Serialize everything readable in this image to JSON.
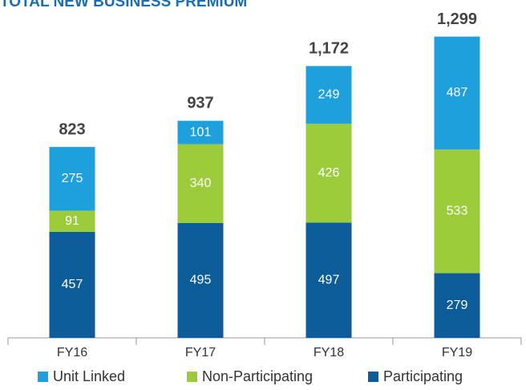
{
  "chart_data": {
    "type": "stacked_bar",
    "title": "TOTAL NEW BUSINESS PREMIUM",
    "categories": [
      "FY16",
      "FY17",
      "FY18",
      "FY19"
    ],
    "series": [
      {
        "name": "Unit Linked",
        "color": "#1ea0dc",
        "values": [
          275,
          101,
          249,
          487
        ]
      },
      {
        "name": "Non-Participating",
        "color": "#9ccb3b",
        "values": [
          91,
          340,
          426,
          533
        ]
      },
      {
        "name": "Participating",
        "color": "#0d5c9a",
        "values": [
          457,
          495,
          497,
          279
        ]
      }
    ],
    "totals": {
      "values": [
        823,
        937,
        1172,
        1299
      ],
      "value_labels": [
        "823",
        "937",
        "1,172",
        "1,299"
      ]
    },
    "legend": "bottom"
  }
}
